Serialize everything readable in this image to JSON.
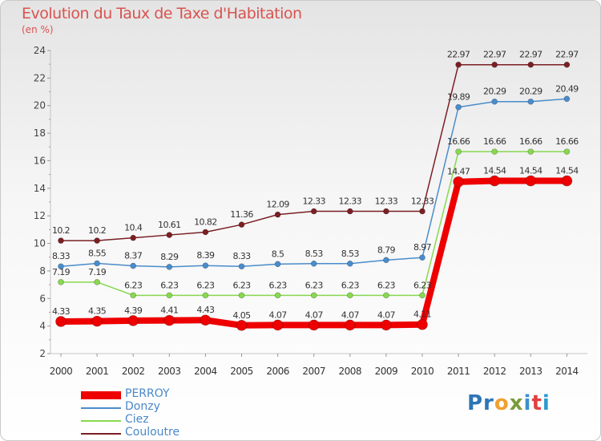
{
  "title": "Evolution du Taux de Taxe d'Habitation",
  "unit": "(en %)",
  "logo": {
    "parts": [
      "Pr",
      "o",
      "x",
      "i",
      "t",
      "i"
    ],
    "colors": [
      "#2e75b6",
      "#f0a030",
      "#7a9a3a",
      "#3a8fd0",
      "#e04040",
      "#2e9ad0"
    ]
  },
  "chart_data": {
    "type": "line",
    "x": [
      "2000",
      "2001",
      "2002",
      "2003",
      "2004",
      "2005",
      "2006",
      "2007",
      "2008",
      "2009",
      "2010",
      "2011",
      "2012",
      "2013",
      "2014"
    ],
    "ylim": [
      2,
      24
    ],
    "yticks": [
      2,
      4,
      6,
      8,
      10,
      12,
      14,
      16,
      18,
      20,
      22,
      24
    ],
    "grid": false,
    "legend_position": "bottom-left",
    "series": [
      {
        "name": "Couloutre",
        "color": "#7a1f24",
        "width": 1.5,
        "marker": 3.5,
        "values": [
          10.2,
          10.2,
          10.4,
          10.61,
          10.82,
          11.36,
          12.09,
          12.33,
          12.33,
          12.33,
          12.33,
          22.97,
          22.97,
          22.97,
          22.97
        ],
        "labels": [
          "10.2",
          "10.2",
          "10.4",
          "10.61",
          "10.82",
          "11.36",
          "12.09",
          "12.33",
          "12.33",
          "12.33",
          "12.33",
          "22.97",
          "22.97",
          "22.97",
          "22.97"
        ]
      },
      {
        "name": "Donzy",
        "color": "#4a8ccb",
        "width": 1.5,
        "marker": 3.5,
        "values": [
          8.33,
          8.55,
          8.37,
          8.29,
          8.39,
          8.33,
          8.5,
          8.53,
          8.53,
          8.79,
          8.97,
          19.89,
          20.29,
          20.29,
          20.49
        ],
        "labels": [
          "8.33",
          "8.55",
          "8.37",
          "8.29",
          "8.39",
          "8.33",
          "8.5",
          "8.53",
          "8.53",
          "8.79",
          "8.97",
          "19.89",
          "20.29",
          "20.29",
          "20.49"
        ]
      },
      {
        "name": "Ciez",
        "color": "#88d850",
        "width": 1.5,
        "marker": 3.5,
        "values": [
          7.19,
          7.19,
          6.23,
          6.23,
          6.23,
          6.23,
          6.23,
          6.23,
          6.23,
          6.23,
          6.23,
          16.66,
          16.66,
          16.66,
          16.66
        ],
        "labels": [
          "7.19",
          "7.19",
          "6.23",
          "6.23",
          "6.23",
          "6.23",
          "6.23",
          "6.23",
          "6.23",
          "6.23",
          "6.23",
          "16.66",
          "16.66",
          "16.66",
          "16.66"
        ]
      },
      {
        "name": "PERROY",
        "color": "#ee0000",
        "width": 8,
        "marker": 6.5,
        "values": [
          4.33,
          4.35,
          4.39,
          4.41,
          4.43,
          4.05,
          4.07,
          4.07,
          4.07,
          4.07,
          4.11,
          14.47,
          14.54,
          14.54,
          14.54
        ],
        "labels": [
          "4.33",
          "4.35",
          "4.39",
          "4.41",
          "4.43",
          "4.05",
          "4.07",
          "4.07",
          "4.07",
          "4.07",
          "4.11",
          "14.47",
          "14.54",
          "14.54",
          "14.54"
        ]
      }
    ],
    "legend_order": [
      "PERROY",
      "Donzy",
      "Ciez",
      "Couloutre"
    ]
  }
}
